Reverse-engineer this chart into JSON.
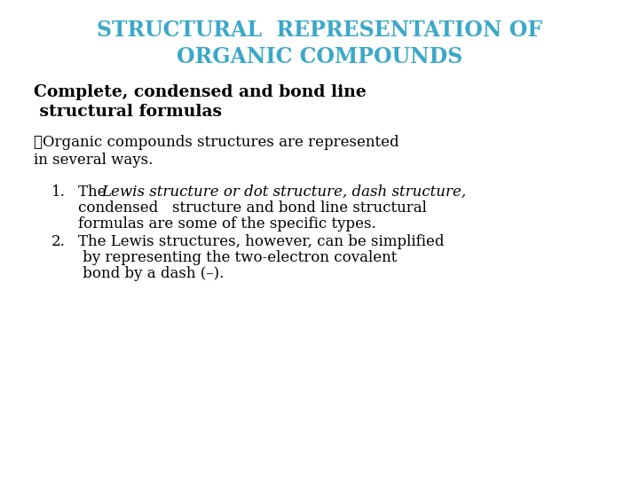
{
  "background_color": "#ffffff",
  "title_line1": "STRUCTURAL  REPRESENTATION OF",
  "title_line2": "ORGANIC COMPOUNDS",
  "title_color": "#3CA8C8",
  "title_fontsize": 17,
  "subtitle_line1": "Complete, condensed and bond line",
  "subtitle_line2": " structural formulas",
  "subtitle_fontsize": 13.5,
  "subtitle_color": "#000000",
  "bullet_line1": "❑Organic compounds structures are represented",
  "bullet_line2": "in several ways.",
  "bullet_fontsize": 12,
  "bullet_color": "#000000",
  "item1_num": "1.",
  "item1_pre": "The ",
  "item1_italic": "Lewis structure or dot structure, dash structure,",
  "item1_rest_line1": "condensed   structure and bond line structural",
  "item1_rest_line2": "formulas are some of the specific types.",
  "item2_num": "2.",
  "item2_line1": "The Lewis structures, however, can be simplified",
  "item2_line2": " by representing the two-electron covalent",
  "item2_line3": " bond by a dash (–).",
  "item_fontsize": 12,
  "item_color": "#000000"
}
